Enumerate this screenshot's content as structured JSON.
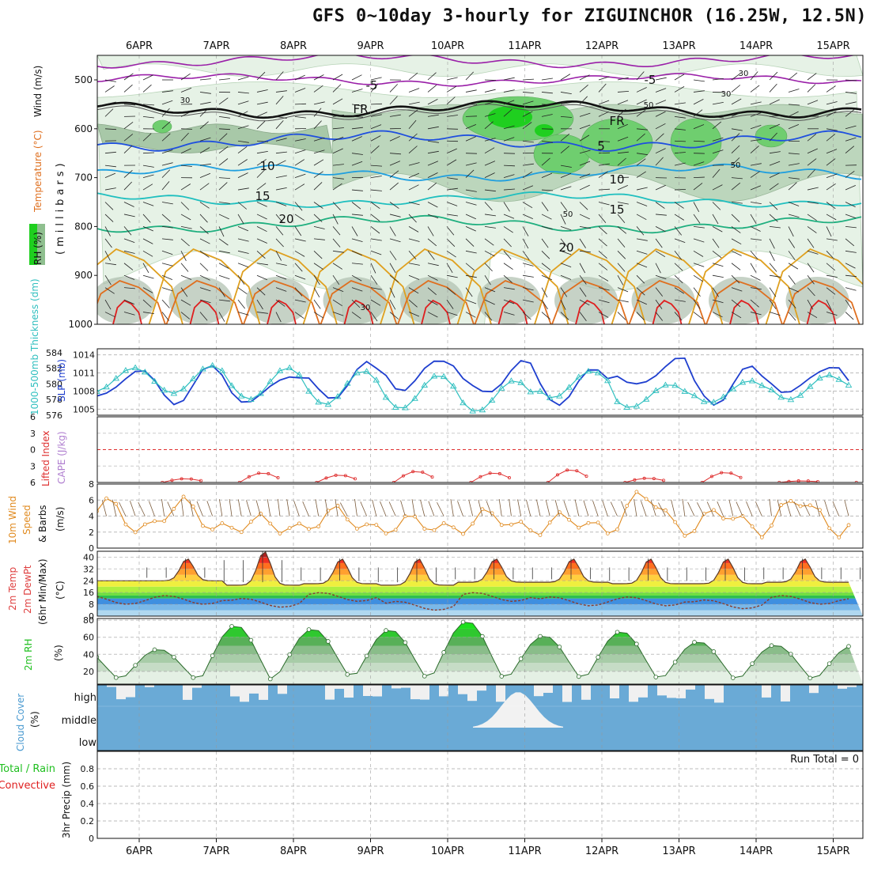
{
  "title": "GFS 0~10day 3-hourly for ZIGUINCHOR (16.25W, 12.5N)",
  "dates": [
    "6APR",
    "7APR",
    "8APR",
    "9APR",
    "10APR",
    "11APR",
    "12APR",
    "13APR",
    "14APR",
    "15APR"
  ],
  "colors": {
    "rh_green": "#1fcf1f",
    "rh_light": "#e6f2e6",
    "rh_mid": "#9fc89f",
    "temp_purple": "#9a1fa8",
    "freezing": "#111111",
    "t5": "#1f4fdf",
    "t10": "#1f9fdf",
    "t15": "#1fbfbf",
    "t20": "#1faf7f",
    "t25": "#dfa01f",
    "t30": "#df6f1f",
    "t35": "#df1f1f",
    "slp": "#1f3fcf",
    "thickness": "#2fbfbf",
    "lifted": "#df2f2f",
    "wind": "#e08a1f",
    "cloud": "#6aaad6",
    "precip_total": "#1fbf1f",
    "precip_conv": "#df1f1f"
  },
  "panels": {
    "upper_air": {
      "ylabel_rh": "RH (%)",
      "ylabel_temp": "Temperature (°C)",
      "ylabel_wind": "Wind (m/s)",
      "ylabel_pressure": "(millibars)",
      "pressure_ticks": [
        "500",
        "600",
        "700",
        "800",
        "900",
        "1000"
      ],
      "contour_labels": [
        "-5",
        "-5",
        "FR",
        "FR",
        "5",
        "10",
        "10",
        "15",
        "15",
        "20",
        "20",
        "30",
        "30",
        "30",
        "50",
        "50",
        "50",
        "30"
      ]
    },
    "slp_thickness": {
      "ylabel_left": "1000-500mb Thickness (dm)",
      "ylabel_right": "SLP (mb)",
      "thickness_ticks": [
        "584",
        "582",
        "580",
        "578",
        "576"
      ],
      "slp_ticks": [
        "1014",
        "1011",
        "1008",
        "1005"
      ]
    },
    "cape_li": {
      "ylabel_li": "Lifted Index",
      "ylabel_cape": "CAPE (J/kg)",
      "li_ticks": [
        "-6",
        "-3",
        "0",
        "3",
        "6"
      ]
    },
    "wind10m": {
      "ylabel": "10m Wind Speed & Barbs (m/s)",
      "ylabel_1": "10m Wind",
      "ylabel_2": "Speed",
      "ylabel_3": "& Barbs",
      "ylabel_4": "(m/s)",
      "ticks": [
        "8",
        "6",
        "4",
        "2",
        "0"
      ]
    },
    "temp2m": {
      "ylabel_1": "2m Temp",
      "ylabel_2": "2m DewPt",
      "ylabel_3": "(6hr Min/Max)",
      "ylabel_4": "(°C)",
      "ticks": [
        "40",
        "32",
        "24",
        "16",
        "8",
        "0"
      ]
    },
    "rh2m": {
      "ylabel_1": "2m RH",
      "ylabel_2": "(%)",
      "ticks": [
        "80",
        "60",
        "40",
        "20"
      ]
    },
    "cloud": {
      "ylabel_1": "Cloud Cover",
      "ylabel_2": "(%)",
      "levels": [
        "high",
        "middle",
        "low"
      ]
    },
    "precip": {
      "ylabel_total": "Total / Rain",
      "ylabel_conv": "Convective",
      "ylabel_units": "3hr Precip (mm)",
      "ticks": [
        "0.8",
        "0.6",
        "0.4",
        "0.2",
        "0"
      ],
      "run_total": "Run Total = 0"
    }
  },
  "chart_data": [
    {
      "type": "line",
      "name": "1000-500mb thickness and SLP",
      "x": [
        "6APR",
        "7APR",
        "8APR",
        "9APR",
        "10APR",
        "11APR",
        "12APR",
        "13APR",
        "14APR",
        "15APR"
      ],
      "series": [
        {
          "name": "SLP (mb)",
          "values": [
            1009,
            1008.5,
            1009.5,
            1011,
            1010,
            1009,
            1011,
            1009,
            1010,
            1009
          ]
        },
        {
          "name": "1000-500mb Thickness (dm)",
          "values": [
            580.5,
            580,
            579.5,
            579,
            578.5,
            580,
            578.5,
            579,
            579.5,
            580
          ]
        }
      ],
      "slp_ylim": [
        1004,
        1015
      ],
      "thickness_ylim": [
        576,
        584.5
      ]
    },
    {
      "type": "line",
      "name": "Lifted Index",
      "ylim": [
        -6,
        6
      ],
      "daily_min_values": [
        5.3,
        4.2,
        4.6,
        3.9,
        4.2,
        3.6,
        5.2,
        4.1,
        5.7,
        6
      ]
    },
    {
      "type": "line",
      "name": "10m Wind Speed",
      "ylim": [
        0,
        8
      ],
      "x": [
        "6APR",
        "7APR",
        "8APR",
        "9APR",
        "10APR",
        "11APR",
        "12APR",
        "13APR",
        "14APR",
        "15APR"
      ],
      "values": [
        6.5,
        4.5,
        5.5,
        4.5,
        5.2,
        4.8,
        7.5,
        5.5,
        7.0,
        5.5
      ]
    },
    {
      "type": "area",
      "name": "2m Temp / DewPt",
      "ylim": [
        0,
        44
      ],
      "temp_max": [
        39,
        44,
        39,
        39,
        39,
        39,
        39,
        39,
        39,
        39
      ],
      "temp_min": [
        24,
        21,
        22,
        21,
        23,
        23,
        22,
        22,
        23,
        23
      ],
      "dewpt": [
        11,
        9,
        13,
        7,
        13,
        10,
        10,
        8,
        11,
        10
      ]
    },
    {
      "type": "area",
      "name": "2m RH",
      "ylim": [
        5,
        82
      ],
      "daily_max": [
        46,
        74,
        70,
        69,
        79,
        62,
        67,
        55,
        51,
        50
      ],
      "daily_min": [
        10,
        6,
        12,
        10,
        9,
        10,
        9,
        9,
        9,
        10
      ]
    },
    {
      "type": "bar",
      "name": "3hr Precip (mm)",
      "ylim": [
        0,
        1
      ],
      "run_total": 0,
      "values": []
    }
  ]
}
